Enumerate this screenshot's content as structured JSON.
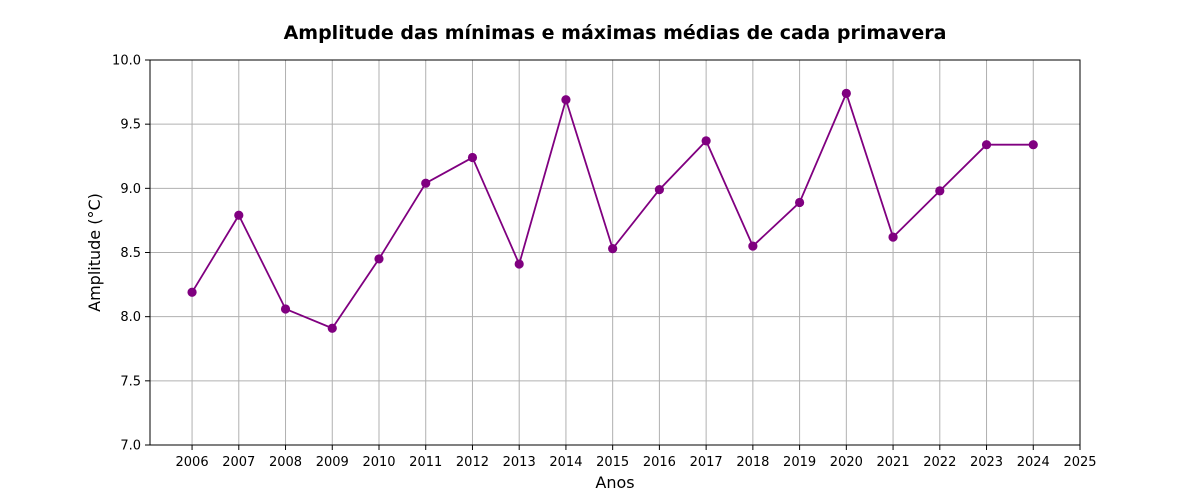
{
  "chart_data": {
    "type": "line",
    "title": "Amplitude das mínimas e máximas médias de cada primavera",
    "xlabel": "Anos",
    "ylabel": "Amplitude (°C)",
    "xlim": [
      2005.1,
      2025
    ],
    "ylim": [
      7.0,
      10.0
    ],
    "x_ticks": [
      2006,
      2007,
      2008,
      2009,
      2010,
      2011,
      2012,
      2013,
      2014,
      2015,
      2016,
      2017,
      2018,
      2019,
      2020,
      2021,
      2022,
      2023,
      2024,
      2025
    ],
    "y_ticks": [
      "7.0",
      "7.5",
      "8.0",
      "8.5",
      "9.0",
      "9.5",
      "10.0"
    ],
    "grid": true,
    "series": [
      {
        "color": "#800080",
        "marker": "circle",
        "x": [
          2006,
          2007,
          2008,
          2009,
          2010,
          2011,
          2012,
          2013,
          2014,
          2015,
          2016,
          2017,
          2018,
          2019,
          2020,
          2021,
          2022,
          2023,
          2024
        ],
        "y": [
          8.19,
          8.79,
          8.06,
          7.91,
          8.45,
          9.04,
          9.24,
          8.41,
          9.69,
          8.53,
          8.99,
          9.37,
          8.55,
          8.89,
          9.74,
          8.62,
          8.98,
          9.34,
          9.34
        ]
      }
    ]
  }
}
